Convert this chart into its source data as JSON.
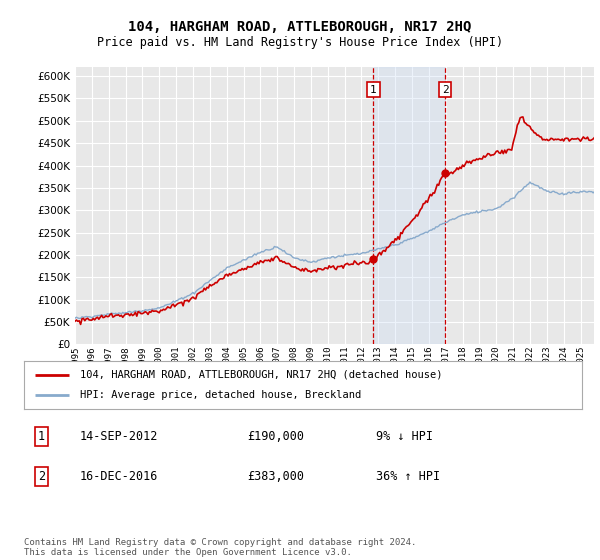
{
  "title": "104, HARGHAM ROAD, ATTLEBOROUGH, NR17 2HQ",
  "subtitle": "Price paid vs. HM Land Registry's House Price Index (HPI)",
  "ylim": [
    0,
    620000
  ],
  "yticks": [
    0,
    50000,
    100000,
    150000,
    200000,
    250000,
    300000,
    350000,
    400000,
    450000,
    500000,
    550000,
    600000
  ],
  "year_start": 1995,
  "year_end": 2025,
  "hpi_color": "#88aacc",
  "price_color": "#cc0000",
  "sale1_year": 2012,
  "sale1_month": 9,
  "sale1_price": 190000,
  "sale2_year": 2016,
  "sale2_month": 12,
  "sale2_price": 383000,
  "sale1_date": "14-SEP-2012",
  "sale2_date": "16-DEC-2016",
  "sale1_pct": "9% ↓ HPI",
  "sale2_pct": "36% ↑ HPI",
  "legend1": "104, HARGHAM ROAD, ATTLEBOROUGH, NR17 2HQ (detached house)",
  "legend2": "HPI: Average price, detached house, Breckland",
  "footer": "Contains HM Land Registry data © Crown copyright and database right 2024.\nThis data is licensed under the Open Government Licence v3.0.",
  "background_color": "#e8e8e8",
  "grid_color": "#ffffff",
  "shading_color": "#ccddf5"
}
